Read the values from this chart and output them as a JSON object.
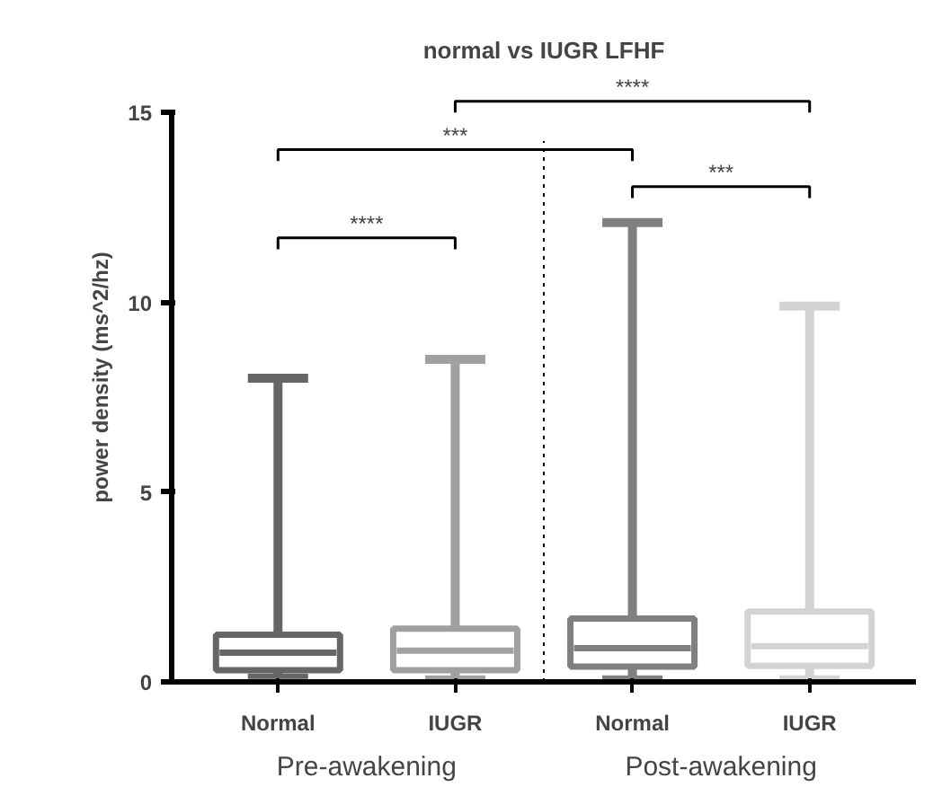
{
  "chart_data": {
    "type": "box",
    "title": "normal vs IUGR LFHF",
    "ylabel": "power density (ms^2/hz)",
    "categories": [
      "Normal",
      "IUGR",
      "Normal",
      "IUGR"
    ],
    "colors": [
      "#666666",
      "#a0a0a0",
      "#808080",
      "#d3d3d3"
    ],
    "boxes": [
      {
        "low": 0.15,
        "q1": 0.31,
        "median": 0.77,
        "q3": 1.24,
        "high": 8.0
      },
      {
        "low": 0.1,
        "q1": 0.31,
        "median": 0.82,
        "q3": 1.4,
        "high": 8.5
      },
      {
        "low": 0.1,
        "q1": 0.4,
        "median": 0.89,
        "q3": 1.67,
        "high": 12.1
      },
      {
        "low": 0.1,
        "q1": 0.42,
        "median": 0.94,
        "q3": 1.85,
        "high": 9.9
      }
    ],
    "ylim": [
      0,
      15
    ],
    "yticks": [
      0,
      5,
      10,
      15
    ],
    "grid": false,
    "annotations": [
      "****",
      "***",
      "****",
      "***",
      "Pre-awakening",
      "Post-awakening"
    ]
  }
}
